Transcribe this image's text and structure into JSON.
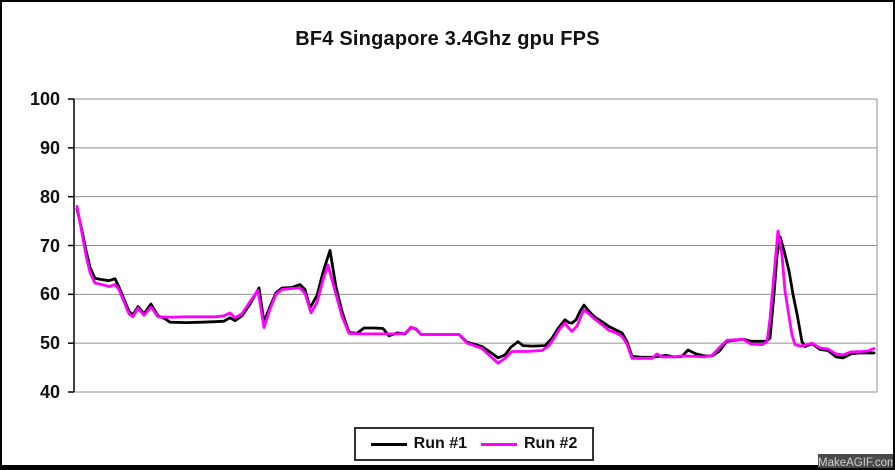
{
  "chart_data": {
    "type": "line",
    "title": "BF4 Singapore 3.4Ghz gpu FPS",
    "xlabel": "",
    "ylabel": "",
    "x_axis_note": "no x tick labels shown (time / frame samples)",
    "ylim": [
      40,
      100
    ],
    "yticks": [
      100,
      90,
      80,
      70,
      60,
      50,
      40
    ],
    "grid": true,
    "gridline_color": "#909090",
    "axis_color": "#000000",
    "legend_position": "bottom-center",
    "series": [
      {
        "name": "Run #1",
        "color": "#000000",
        "points": [
          [
            75,
            77.5
          ],
          [
            80,
            73
          ],
          [
            84,
            69
          ],
          [
            88,
            65.5
          ],
          [
            93,
            63.3
          ],
          [
            100,
            63
          ],
          [
            107,
            62.8
          ],
          [
            113,
            63.2
          ],
          [
            117,
            61.5
          ],
          [
            123,
            58.5
          ],
          [
            127,
            56.5
          ],
          [
            131,
            55.8
          ],
          [
            136,
            57.5
          ],
          [
            142,
            56
          ],
          [
            149,
            58
          ],
          [
            156,
            55.6
          ],
          [
            163,
            55
          ],
          [
            168,
            54.3
          ],
          [
            184,
            54.2
          ],
          [
            200,
            54.3
          ],
          [
            213,
            54.4
          ],
          [
            222,
            54.5
          ],
          [
            228,
            55.2
          ],
          [
            233,
            54.6
          ],
          [
            240,
            55.6
          ],
          [
            248,
            58
          ],
          [
            257,
            61.3
          ],
          [
            262,
            54.3
          ],
          [
            268,
            57.5
          ],
          [
            274,
            60.3
          ],
          [
            280,
            61.3
          ],
          [
            290,
            61.4
          ],
          [
            298,
            62
          ],
          [
            303,
            61
          ],
          [
            308,
            57.2
          ],
          [
            315,
            59.8
          ],
          [
            321,
            64.5
          ],
          [
            328,
            69
          ],
          [
            334,
            61.5
          ],
          [
            340,
            56.5
          ],
          [
            347,
            52.2
          ],
          [
            355,
            52
          ],
          [
            362,
            53.1
          ],
          [
            372,
            53.1
          ],
          [
            381,
            53
          ],
          [
            387,
            51.5
          ],
          [
            395,
            52.1
          ],
          [
            403,
            51.9
          ],
          [
            409,
            53.2
          ],
          [
            414,
            52.9
          ],
          [
            419,
            51.8
          ],
          [
            432,
            51.8
          ],
          [
            446,
            51.8
          ],
          [
            457,
            51.8
          ],
          [
            465,
            50.2
          ],
          [
            472,
            49.8
          ],
          [
            480,
            49.3
          ],
          [
            488,
            48.2
          ],
          [
            496,
            47
          ],
          [
            503,
            47.6
          ],
          [
            509,
            49.2
          ],
          [
            516,
            50.3
          ],
          [
            521,
            49.5
          ],
          [
            530,
            49.4
          ],
          [
            543,
            49.5
          ],
          [
            550,
            51
          ],
          [
            556,
            53
          ],
          [
            563,
            54.8
          ],
          [
            567,
            54.2
          ],
          [
            570,
            54.1
          ],
          [
            574,
            54.8
          ],
          [
            578,
            56.5
          ],
          [
            582,
            57.8
          ],
          [
            588,
            56.3
          ],
          [
            593,
            55.3
          ],
          [
            600,
            54.4
          ],
          [
            607,
            53.4
          ],
          [
            613,
            52.8
          ],
          [
            620,
            52.1
          ],
          [
            625,
            50.3
          ],
          [
            630,
            47.3
          ],
          [
            640,
            47.1
          ],
          [
            650,
            47.1
          ],
          [
            657,
            47.3
          ],
          [
            664,
            47.5
          ],
          [
            672,
            47.2
          ],
          [
            680,
            47.3
          ],
          [
            686,
            48.6
          ],
          [
            694,
            47.8
          ],
          [
            702,
            47.4
          ],
          [
            710,
            47.4
          ],
          [
            717,
            48.3
          ],
          [
            725,
            50.4
          ],
          [
            741,
            50.8
          ],
          [
            749,
            50.4
          ],
          [
            764,
            50.4
          ],
          [
            768,
            51
          ],
          [
            772,
            60
          ],
          [
            775,
            68
          ],
          [
            778,
            71.8
          ],
          [
            782,
            69
          ],
          [
            787,
            64.8
          ],
          [
            791,
            60
          ],
          [
            795,
            56
          ],
          [
            800,
            50.3
          ],
          [
            803,
            49.3
          ],
          [
            810,
            49.9
          ],
          [
            818,
            48.7
          ],
          [
            826,
            48.5
          ],
          [
            834,
            47.2
          ],
          [
            841,
            47
          ],
          [
            849,
            47.8
          ],
          [
            857,
            48
          ],
          [
            872,
            48
          ]
        ]
      },
      {
        "name": "Run #2",
        "color": "#ff00ff",
        "points": [
          [
            75,
            78
          ],
          [
            80,
            72.5
          ],
          [
            84,
            68
          ],
          [
            88,
            64.5
          ],
          [
            93,
            62.3
          ],
          [
            100,
            62
          ],
          [
            107,
            61.6
          ],
          [
            113,
            62
          ],
          [
            117,
            61
          ],
          [
            123,
            58
          ],
          [
            127,
            56
          ],
          [
            131,
            55.4
          ],
          [
            136,
            57.2
          ],
          [
            142,
            55.7
          ],
          [
            149,
            57.4
          ],
          [
            156,
            55.4
          ],
          [
            168,
            55.3
          ],
          [
            184,
            55.4
          ],
          [
            200,
            55.4
          ],
          [
            213,
            55.4
          ],
          [
            222,
            55.6
          ],
          [
            228,
            56.2
          ],
          [
            233,
            55.2
          ],
          [
            240,
            56
          ],
          [
            248,
            58.5
          ],
          [
            256,
            60.8
          ],
          [
            262,
            53.2
          ],
          [
            268,
            57
          ],
          [
            274,
            60
          ],
          [
            280,
            61
          ],
          [
            290,
            61.2
          ],
          [
            298,
            61.3
          ],
          [
            303,
            60.2
          ],
          [
            309,
            56.2
          ],
          [
            315,
            58.3
          ],
          [
            321,
            63
          ],
          [
            326,
            66
          ],
          [
            332,
            61.5
          ],
          [
            340,
            55.5
          ],
          [
            347,
            52
          ],
          [
            358,
            51.9
          ],
          [
            370,
            51.9
          ],
          [
            382,
            51.9
          ],
          [
            395,
            51.9
          ],
          [
            403,
            52
          ],
          [
            409,
            53.3
          ],
          [
            414,
            52.8
          ],
          [
            419,
            51.8
          ],
          [
            432,
            51.8
          ],
          [
            446,
            51.8
          ],
          [
            457,
            51.8
          ],
          [
            465,
            50
          ],
          [
            472,
            49.5
          ],
          [
            480,
            48.9
          ],
          [
            488,
            47.4
          ],
          [
            496,
            45.9
          ],
          [
            503,
            46.9
          ],
          [
            510,
            48.3
          ],
          [
            524,
            48.3
          ],
          [
            540,
            48.5
          ],
          [
            547,
            49.5
          ],
          [
            552,
            51
          ],
          [
            558,
            53
          ],
          [
            563,
            54.1
          ],
          [
            567,
            53
          ],
          [
            570,
            52.4
          ],
          [
            575,
            53.5
          ],
          [
            579,
            55.5
          ],
          [
            582,
            56.8
          ],
          [
            588,
            55.8
          ],
          [
            593,
            54.9
          ],
          [
            600,
            53.8
          ],
          [
            607,
            52.6
          ],
          [
            613,
            52.2
          ],
          [
            620,
            51.4
          ],
          [
            625,
            49.8
          ],
          [
            630,
            46.9
          ],
          [
            640,
            46.9
          ],
          [
            650,
            46.9
          ],
          [
            655,
            47.8
          ],
          [
            660,
            47.2
          ],
          [
            672,
            47.2
          ],
          [
            680,
            47.4
          ],
          [
            694,
            47.3
          ],
          [
            702,
            47.2
          ],
          [
            710,
            47.5
          ],
          [
            717,
            49
          ],
          [
            725,
            50.6
          ],
          [
            741,
            50.8
          ],
          [
            749,
            49.8
          ],
          [
            760,
            49.7
          ],
          [
            765,
            50.3
          ],
          [
            768,
            55
          ],
          [
            772,
            64
          ],
          [
            776,
            73
          ],
          [
            780,
            68
          ],
          [
            783,
            60.7
          ],
          [
            787,
            55.5
          ],
          [
            790,
            51.7
          ],
          [
            793,
            49.7
          ],
          [
            798,
            49.4
          ],
          [
            804,
            49.6
          ],
          [
            810,
            50
          ],
          [
            818,
            49
          ],
          [
            826,
            48.8
          ],
          [
            834,
            47.8
          ],
          [
            841,
            47.6
          ],
          [
            849,
            48.2
          ],
          [
            860,
            48.3
          ],
          [
            866,
            48.4
          ],
          [
            872,
            48.9
          ]
        ]
      }
    ]
  },
  "legend": {
    "items": [
      {
        "label": "Run #1",
        "color": "#000000"
      },
      {
        "label": "Run #2",
        "color": "#ff00ff"
      }
    ]
  },
  "watermark": {
    "text": "MakeAGIF.com"
  }
}
